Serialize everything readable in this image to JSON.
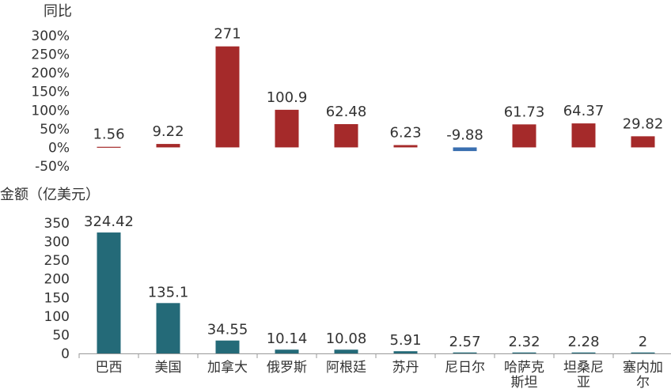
{
  "chart_data": [
    {
      "type": "bar",
      "ylabel": "同比",
      "yticks": [
        "300%",
        "250%",
        "200%",
        "150%",
        "100%",
        "50%",
        "0%",
        "-50%"
      ],
      "ylim": [
        -50,
        300
      ],
      "categories": [
        "巴西",
        "美国",
        "加拿大",
        "俄罗斯",
        "阿根廷",
        "苏丹",
        "尼日尔",
        "哈萨克斯坦",
        "坦桑尼亚",
        "塞内加尔"
      ],
      "values": [
        1.56,
        9.22,
        271,
        100.9,
        62.48,
        6.23,
        -9.88,
        61.73,
        64.37,
        29.82
      ],
      "value_labels": [
        "1.56",
        "9.22",
        "271",
        "100.9",
        "62.48",
        "6.23",
        "-9.88",
        "61.73",
        "64.37",
        "29.82"
      ],
      "colors": {
        "positive": "#A52A2A",
        "negative": "#3A6FB0"
      }
    },
    {
      "type": "bar",
      "ylabel": "金额（亿美元）",
      "yticks": [
        "350",
        "300",
        "250",
        "200",
        "150",
        "100",
        "50",
        "0"
      ],
      "ylim": [
        0,
        350
      ],
      "categories": [
        "巴西",
        "美国",
        "加拿大",
        "俄罗斯",
        "阿根廷",
        "苏丹",
        "尼日尔",
        "哈萨克斯坦",
        "坦桑尼亚",
        "塞内加尔"
      ],
      "category_lines": [
        [
          "巴西"
        ],
        [
          "美国"
        ],
        [
          "加拿大"
        ],
        [
          "俄罗斯"
        ],
        [
          "阿根廷"
        ],
        [
          "苏丹"
        ],
        [
          "尼日尔"
        ],
        [
          "哈萨克",
          "斯坦"
        ],
        [
          "坦桑尼",
          "亚"
        ],
        [
          "塞内加",
          "尔"
        ]
      ],
      "values": [
        324.42,
        135.1,
        34.55,
        10.14,
        10.08,
        5.91,
        2.57,
        2.32,
        2.28,
        2
      ],
      "value_labels": [
        "324.42",
        "135.1",
        "34.55",
        "10.14",
        "10.08",
        "5.91",
        "2.57",
        "2.32",
        "2.28",
        "2"
      ],
      "colors": {
        "bar": "#246A78",
        "axis": "#999999"
      }
    }
  ]
}
